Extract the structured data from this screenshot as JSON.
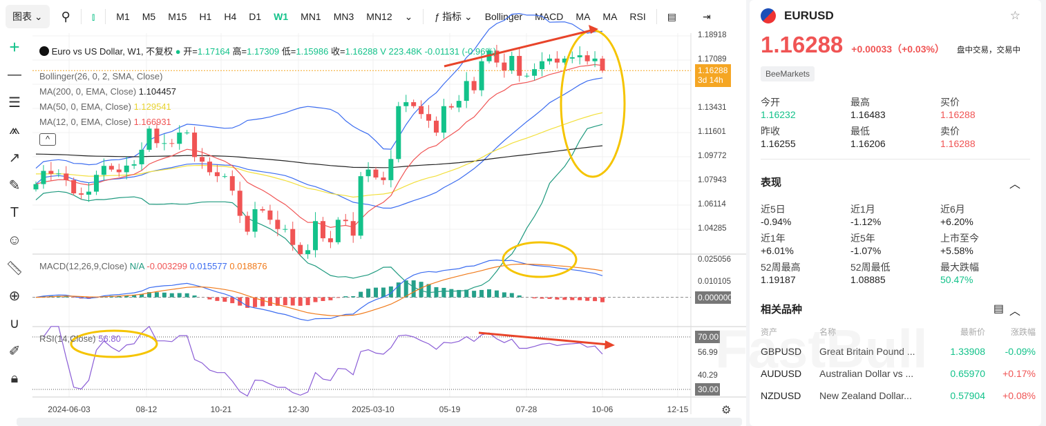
{
  "toolbar": {
    "chart_menu": "图表",
    "timeframes": [
      "M1",
      "M5",
      "M15",
      "H1",
      "H4",
      "D1",
      "W1",
      "MN1",
      "MN3",
      "MN12"
    ],
    "active_timeframe": "W1",
    "indicators_label": "指标",
    "indicator_buttons": [
      "Bollinger",
      "MACD",
      "MA",
      "MA",
      "RSI"
    ]
  },
  "legend": {
    "title": "Euro vs US Dollar, W1, 不复权",
    "open_label": "开",
    "open": "1.17164",
    "high_label": "高",
    "high": "1.17309",
    "low_label": "低",
    "low": "1.15986",
    "close_label": "收",
    "close": "1.16288",
    "volume": "V 223.48K",
    "change": "-0.01131 (-0.96%)",
    "bollinger": "Bollinger(26, 0, 2, SMA, Close)",
    "ma200_label": "MA(200, 0, EMA, Close)",
    "ma200": "1.104457",
    "ma50_label": "MA(50, 0, EMA, Close)",
    "ma50": "1.129541",
    "ma12_label": "MA(12, 0, EMA, Close)",
    "ma12": "1.166931",
    "macd_label": "MACD(12,26,9,Close)",
    "macd_na": "N/A",
    "macd_hist": "-0.003299",
    "macd_line": "0.015577",
    "macd_signal": "0.018876",
    "rsi_label": "RSI(14,Close)",
    "rsi": "56.80"
  },
  "axis": {
    "price": [
      "1.18918",
      "1.17089",
      "1.13431",
      "1.11601",
      "1.09772",
      "1.07943",
      "1.06114",
      "1.04285"
    ],
    "price_tag": "1.16288",
    "countdown": "3d 14h",
    "macd": [
      "0.025056",
      "0.010105",
      "0.000000"
    ],
    "rsi": [
      "70.00",
      "56.99",
      "40.29",
      "30.00"
    ],
    "time": [
      "2024-06-03",
      "08-12",
      "10-21",
      "12-30",
      "2025-03-10",
      "05-19",
      "07-28",
      "10-06",
      "12-15"
    ]
  },
  "colors": {
    "up": "#13c28a",
    "down": "#f05454",
    "accent": "#13c28a",
    "ma12": "#f05454",
    "ma50": "#f2df3a",
    "ma200": "#222222",
    "bb": "#3b6cf0",
    "bb_lower": "#1f9a7f"
  },
  "chart_data": {
    "type": "candlestick",
    "symbol": "EURUSD",
    "timeframe": "W1",
    "ylim": [
      1.025,
      1.19
    ],
    "ema200_seed": 1.1,
    "closes": [
      1.077,
      1.087,
      1.0848,
      1.085,
      1.08,
      1.07,
      1.069,
      1.0713,
      1.084,
      1.0908,
      1.088,
      1.086,
      1.091,
      1.092,
      1.103,
      1.119,
      1.108,
      1.108,
      1.1075,
      1.116,
      1.116,
      1.0975,
      1.094,
      1.086,
      1.083,
      1.083,
      1.072,
      1.053,
      1.041,
      1.058,
      1.057,
      1.05,
      1.043,
      1.043,
      1.031,
      1.024,
      1.027,
      1.049,
      1.036,
      1.033,
      1.05,
      1.049,
      1.038,
      1.083,
      1.088,
      1.082,
      1.08,
      1.096,
      1.136,
      1.139,
      1.136,
      1.13,
      1.125,
      1.116,
      1.136,
      1.135,
      1.14,
      1.155,
      1.148,
      1.17,
      1.178,
      1.169,
      1.163,
      1.174,
      1.159,
      1.159,
      1.164,
      1.17,
      1.172,
      1.169,
      1.172,
      1.173,
      1.1745,
      1.17,
      1.172,
      1.1629
    ]
  },
  "panel": {
    "symbol": "EURUSD",
    "price": "1.16288",
    "change": "+0.00033（+0.03%）",
    "status": "盘中交易，交易中",
    "broker": "BeeMarkets",
    "quote": [
      {
        "k": "今开",
        "v": "1.16232",
        "c": "up"
      },
      {
        "k": "最高",
        "v": "1.16483",
        "c": ""
      },
      {
        "k": "买价",
        "v": "1.16288",
        "c": "down"
      },
      {
        "k": "昨收",
        "v": "1.16255",
        "c": ""
      },
      {
        "k": "最低",
        "v": "1.16206",
        "c": ""
      },
      {
        "k": "卖价",
        "v": "1.16288",
        "c": "down"
      }
    ],
    "perf_title": "表现",
    "perf": [
      {
        "k": "近5日",
        "v": "-0.94%",
        "c": ""
      },
      {
        "k": "近1月",
        "v": "-1.12%",
        "c": ""
      },
      {
        "k": "近6月",
        "v": "+6.20%",
        "c": ""
      },
      {
        "k": "近1年",
        "v": "+6.01%",
        "c": ""
      },
      {
        "k": "近5年",
        "v": "-1.07%",
        "c": ""
      },
      {
        "k": "上市至今",
        "v": "+5.58%",
        "c": ""
      },
      {
        "k": "52周最高",
        "v": "1.19187",
        "c": ""
      },
      {
        "k": "52周最低",
        "v": "1.08885",
        "c": ""
      },
      {
        "k": "最大跌幅",
        "v": "50.47%",
        "c": "up"
      }
    ],
    "related_title": "相关品种",
    "related_headers": [
      "资产",
      "名称",
      "最新价",
      "涨跌幅"
    ],
    "related": [
      {
        "sym": "GBPUSD",
        "name": "Great Britain Pound ...",
        "price": "1.33908",
        "chg": "-0.09%",
        "c": "up"
      },
      {
        "sym": "AUDUSD",
        "name": "Australian Dollar vs ...",
        "price": "0.65970",
        "chg": "+0.17%",
        "c": "down"
      },
      {
        "sym": "NZDUSD",
        "name": "New Zealand Dollar...",
        "price": "0.57904",
        "chg": "+0.08%",
        "c": "down"
      }
    ],
    "watermark": "FastBull"
  }
}
